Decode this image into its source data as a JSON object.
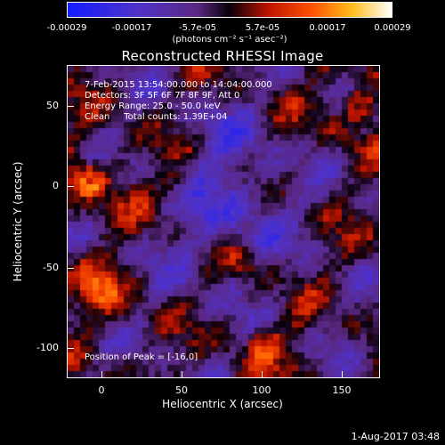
{
  "colorbar": {
    "ticks": [
      "-0.00029",
      "-0.00017",
      "-5.7e-05",
      "5.7e-05",
      "0.00017",
      "0.00029"
    ],
    "units": "(photons cm⁻² s⁻¹ asec⁻²)"
  },
  "title": "Reconstructed RHESSI Image",
  "info": {
    "time_range": "7-Feb-2015 13:54:00.000 to 14:04:00.000",
    "detectors": "Detectors: 3F 5F 6F 7F 8F 9F, Att 0",
    "energy_range": "Energy Range: 25.0 - 50.0 keV",
    "clean": "Clean     Total counts: 1.39E+04"
  },
  "peak": "Position of Peak = [-16,0]",
  "axes": {
    "xlabel": "Heliocentric X (arcsec)",
    "ylabel": "Heliocentric Y (arcsec)",
    "xticks": [
      "0",
      "50",
      "100",
      "150"
    ],
    "yticks": [
      "50",
      "0",
      "-50",
      "-100"
    ]
  },
  "timestamp": "1-Aug-2017 03:48"
}
